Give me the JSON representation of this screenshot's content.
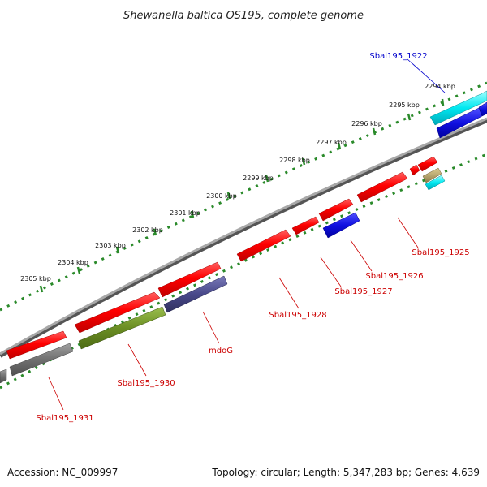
{
  "title": "Shewanella baltica OS195, complete genome",
  "footer": {
    "accession": "Accession: NC_009997",
    "summary": "Topology: circular; Length: 5,347,283 bp; Genes: 4,639"
  },
  "colors": {
    "backbone": "#8a8a8a",
    "ticks": "#2a8a2a",
    "red": "#ff1010",
    "gray": "#707070",
    "olive": "#6b8e23",
    "slate": "#4a4a8a",
    "blue": "#1010e0",
    "cyan": "#00e0e8",
    "tan": "#b8a870",
    "label_red": "#cc0000",
    "label_blue": "#0000cc"
  },
  "ticks": [
    {
      "label": "2294 kbp"
    },
    {
      "label": "2295 kbp"
    },
    {
      "label": "2296 kbp"
    },
    {
      "label": "2297 kbp"
    },
    {
      "label": "2298 kbp"
    },
    {
      "label": "2299 kbp"
    },
    {
      "label": "2300 kbp"
    },
    {
      "label": "2301 kbp"
    },
    {
      "label": "2302 kbp"
    },
    {
      "label": "2303 kbp"
    },
    {
      "label": "2304 kbp"
    },
    {
      "label": "2305 kbp"
    }
  ],
  "gene_labels": [
    {
      "name": "Sbal195_1922",
      "color": "label_blue"
    },
    {
      "name": "Sbal195_1925",
      "color": "label_red"
    },
    {
      "name": "Sbal195_1926",
      "color": "label_red"
    },
    {
      "name": "Sbal195_1927",
      "color": "label_red"
    },
    {
      "name": "Sbal195_1928",
      "color": "label_red"
    },
    {
      "name": "mdoG",
      "color": "label_red"
    },
    {
      "name": "Sbal195_1930",
      "color": "label_red"
    },
    {
      "name": "Sbal195_1931",
      "color": "label_red"
    }
  ]
}
